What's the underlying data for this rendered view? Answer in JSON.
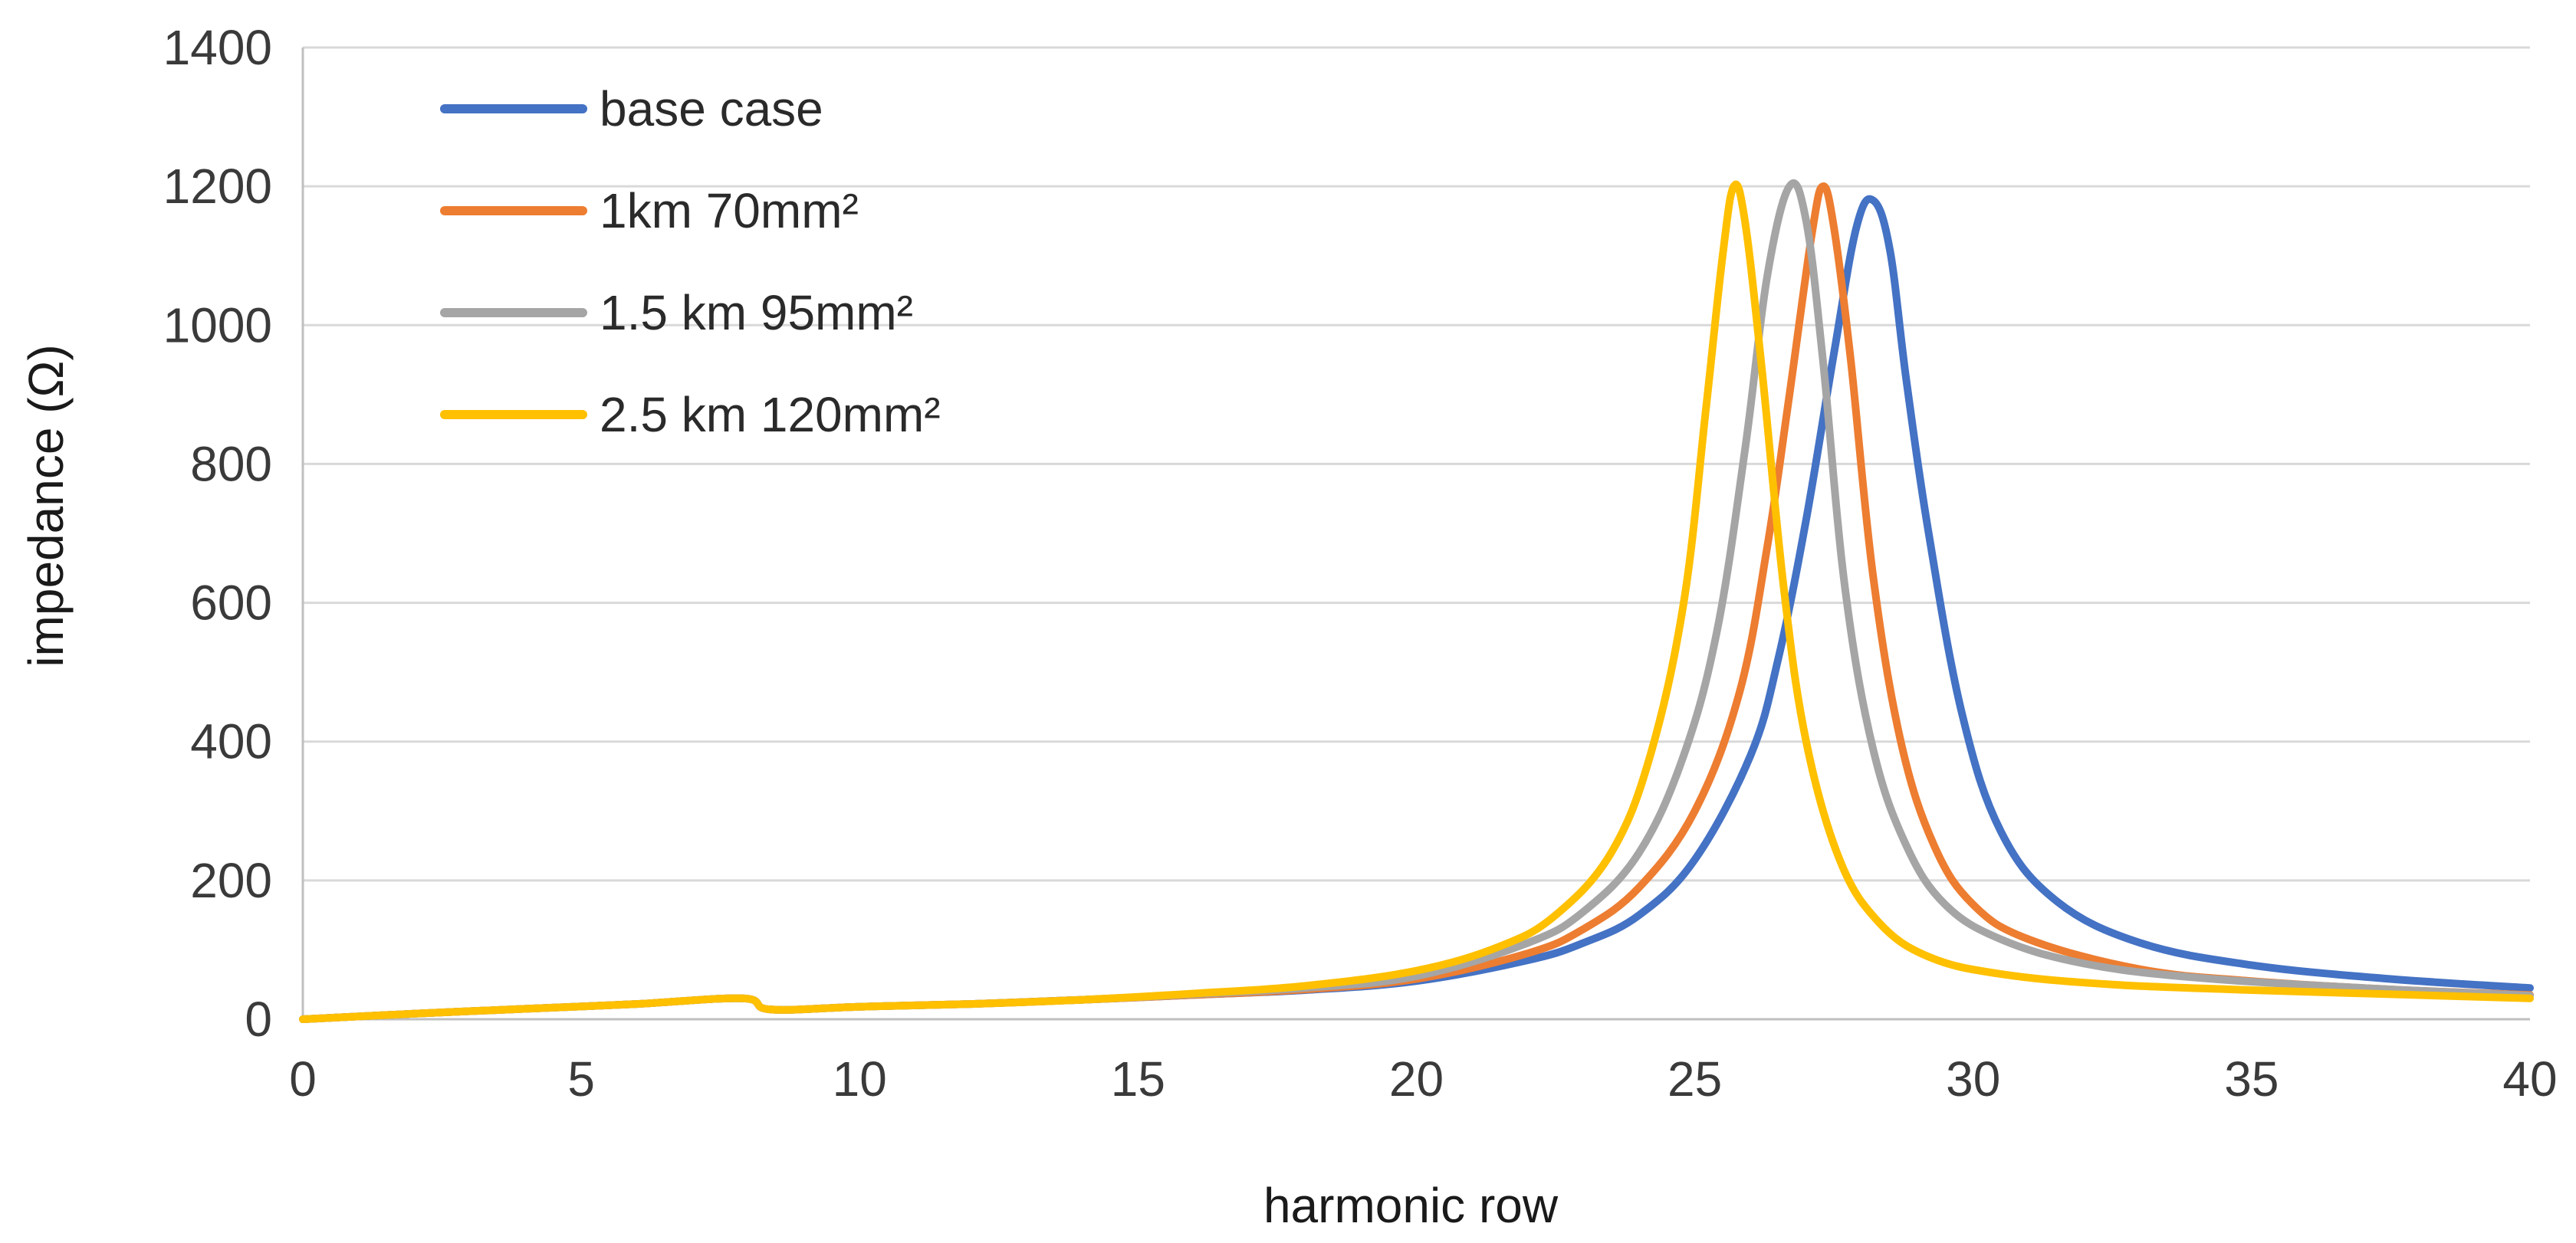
{
  "chart_data": {
    "type": "line",
    "title": "",
    "xlabel": "harmonic row",
    "ylabel": "impedance (Ω)",
    "xlim": [
      0,
      40
    ],
    "ylim": [
      0,
      1400
    ],
    "x_ticks": [
      0,
      5,
      10,
      15,
      20,
      25,
      30,
      35,
      40
    ],
    "y_ticks": [
      0,
      200,
      400,
      600,
      800,
      1000,
      1200,
      1400
    ],
    "grid": "horizontal",
    "legend_position": "top-left",
    "series": [
      {
        "name": "base case",
        "color": "#4472C4",
        "points": [
          [
            0,
            0
          ],
          [
            2,
            8
          ],
          [
            4,
            15
          ],
          [
            6,
            22
          ],
          [
            7.9,
            30
          ],
          [
            8.4,
            14
          ],
          [
            10,
            18
          ],
          [
            12,
            22
          ],
          [
            14,
            28
          ],
          [
            16,
            35
          ],
          [
            18,
            42
          ],
          [
            20,
            55
          ],
          [
            22,
            85
          ],
          [
            23,
            110
          ],
          [
            24,
            150
          ],
          [
            25,
            230
          ],
          [
            26,
            380
          ],
          [
            26.5,
            520
          ],
          [
            27,
            720
          ],
          [
            27.5,
            960
          ],
          [
            27.9,
            1140
          ],
          [
            28.2,
            1180
          ],
          [
            28.5,
            1110
          ],
          [
            28.8,
            920
          ],
          [
            29.2,
            700
          ],
          [
            29.8,
            440
          ],
          [
            30.5,
            270
          ],
          [
            31.5,
            170
          ],
          [
            33,
            110
          ],
          [
            35,
            78
          ],
          [
            37.5,
            58
          ],
          [
            40,
            45
          ]
        ]
      },
      {
        "name": "1km 70mm²",
        "color": "#ED7D31",
        "points": [
          [
            0,
            0
          ],
          [
            2,
            8
          ],
          [
            4,
            15
          ],
          [
            6,
            22
          ],
          [
            7.9,
            30
          ],
          [
            8.4,
            14
          ],
          [
            10,
            18
          ],
          [
            12,
            22
          ],
          [
            14,
            28
          ],
          [
            16,
            35
          ],
          [
            18,
            43
          ],
          [
            20,
            58
          ],
          [
            22,
            95
          ],
          [
            23,
            130
          ],
          [
            24,
            190
          ],
          [
            25,
            300
          ],
          [
            25.8,
            470
          ],
          [
            26.3,
            680
          ],
          [
            26.7,
            900
          ],
          [
            27.1,
            1130
          ],
          [
            27.3,
            1200
          ],
          [
            27.5,
            1140
          ],
          [
            27.8,
            950
          ],
          [
            28.2,
            640
          ],
          [
            28.7,
            400
          ],
          [
            29.3,
            250
          ],
          [
            30,
            165
          ],
          [
            31,
            115
          ],
          [
            33,
            72
          ],
          [
            35,
            55
          ],
          [
            37.5,
            43
          ],
          [
            40,
            35
          ]
        ]
      },
      {
        "name": "1.5 km 95mm²",
        "color": "#A5A5A5",
        "points": [
          [
            0,
            0
          ],
          [
            2,
            8
          ],
          [
            4,
            15
          ],
          [
            6,
            22
          ],
          [
            7.9,
            30
          ],
          [
            8.4,
            14
          ],
          [
            10,
            18
          ],
          [
            12,
            22
          ],
          [
            14,
            28
          ],
          [
            16,
            36
          ],
          [
            18,
            45
          ],
          [
            20,
            62
          ],
          [
            22,
            110
          ],
          [
            23,
            155
          ],
          [
            24,
            240
          ],
          [
            24.8,
            380
          ],
          [
            25.4,
            560
          ],
          [
            25.9,
            820
          ],
          [
            26.3,
            1070
          ],
          [
            26.7,
            1200
          ],
          [
            27,
            1150
          ],
          [
            27.3,
            950
          ],
          [
            27.7,
            620
          ],
          [
            28.2,
            390
          ],
          [
            28.8,
            250
          ],
          [
            29.5,
            165
          ],
          [
            30.5,
            115
          ],
          [
            32,
            80
          ],
          [
            34,
            60
          ],
          [
            37,
            45
          ],
          [
            40,
            34
          ]
        ]
      },
      {
        "name": "2.5 km 120mm²",
        "color": "#FFC000",
        "points": [
          [
            0,
            0
          ],
          [
            2,
            8
          ],
          [
            4,
            15
          ],
          [
            6,
            22
          ],
          [
            7.9,
            30
          ],
          [
            8.4,
            14
          ],
          [
            10,
            18
          ],
          [
            12,
            22
          ],
          [
            14,
            28
          ],
          [
            16,
            37
          ],
          [
            18,
            48
          ],
          [
            20,
            70
          ],
          [
            21.5,
            105
          ],
          [
            22.5,
            150
          ],
          [
            23.5,
            240
          ],
          [
            24.2,
            380
          ],
          [
            24.8,
            600
          ],
          [
            25.2,
            880
          ],
          [
            25.5,
            1100
          ],
          [
            25.7,
            1200
          ],
          [
            25.9,
            1150
          ],
          [
            26.2,
            940
          ],
          [
            26.6,
            620
          ],
          [
            27,
            400
          ],
          [
            27.6,
            230
          ],
          [
            28.3,
            140
          ],
          [
            29.2,
            90
          ],
          [
            30.5,
            65
          ],
          [
            32.5,
            50
          ],
          [
            35,
            42
          ],
          [
            37.5,
            36
          ],
          [
            40,
            30
          ]
        ]
      }
    ]
  }
}
